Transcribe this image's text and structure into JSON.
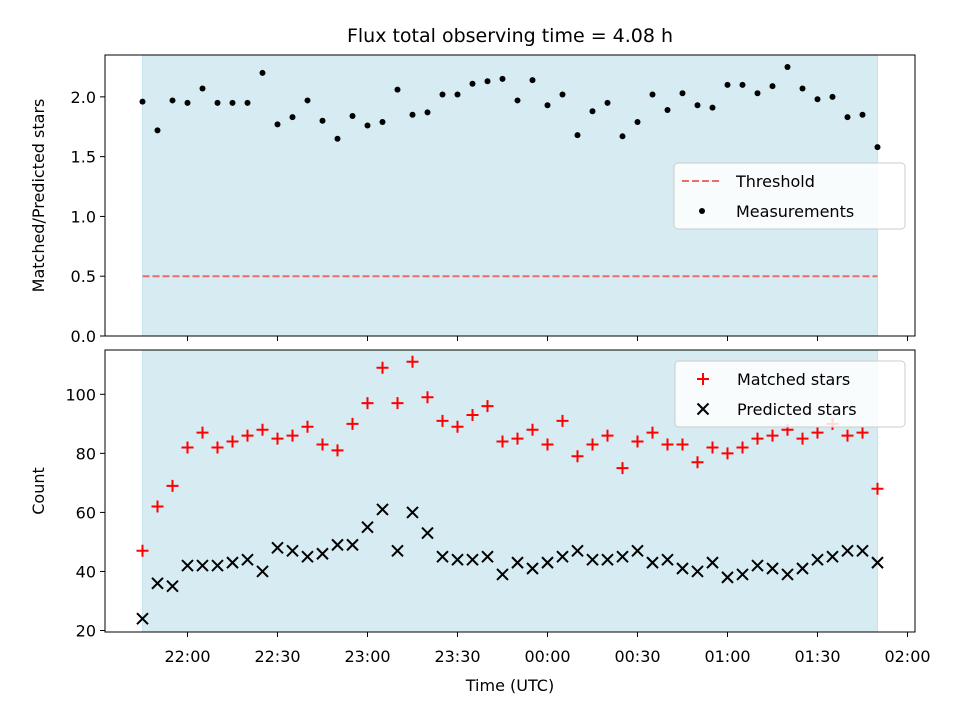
{
  "chart_data": {
    "title": "Flux total observing time = 4.08 h",
    "xlabel": "Time (UTC)",
    "x_tick_labels": [
      "22:00",
      "22:30",
      "23:00",
      "23:30",
      "00:00",
      "00:30",
      "01:00",
      "01:30",
      "02:00"
    ],
    "x_range": [
      "21:45",
      "01:50"
    ],
    "shade_color": "#add8e6",
    "panels": [
      {
        "type": "scatter",
        "ylabel": "Matched/Predicted stars",
        "ylim": [
          0,
          2.35
        ],
        "y_ticks": [
          "0.0",
          "0.5",
          "1.0",
          "1.5",
          "2.0"
        ],
        "legend_position": "right",
        "series": [
          {
            "name": "Threshold",
            "kind": "dashed-line",
            "color": "#ef6a6a",
            "y": 0.5
          },
          {
            "name": "Measurements",
            "kind": "dot",
            "color": "#000000",
            "x": [
              "21:45",
              "21:50",
              "21:55",
              "22:00",
              "22:05",
              "22:10",
              "22:15",
              "22:20",
              "22:25",
              "22:30",
              "22:35",
              "22:40",
              "22:45",
              "22:50",
              "22:55",
              "23:00",
              "23:05",
              "23:10",
              "23:15",
              "23:20",
              "23:25",
              "23:30",
              "23:35",
              "23:40",
              "23:45",
              "23:50",
              "23:55",
              "00:00",
              "00:05",
              "00:10",
              "00:15",
              "00:20",
              "00:25",
              "00:30",
              "00:35",
              "00:40",
              "00:45",
              "00:50",
              "00:55",
              "01:00",
              "01:05",
              "01:10",
              "01:15",
              "01:20",
              "01:25",
              "01:30",
              "01:35",
              "01:40",
              "01:45",
              "01:50"
            ],
            "values": [
              1.96,
              1.72,
              1.97,
              1.95,
              2.07,
              1.95,
              1.95,
              1.95,
              2.2,
              1.77,
              1.83,
              1.97,
              1.8,
              1.65,
              1.84,
              1.76,
              1.79,
              2.06,
              1.85,
              1.87,
              2.02,
              2.02,
              2.11,
              2.13,
              2.15,
              1.97,
              2.14,
              1.93,
              2.02,
              1.68,
              1.88,
              1.95,
              1.67,
              1.79,
              2.02,
              1.89,
              2.03,
              1.93,
              1.91,
              2.1,
              2.1,
              2.03,
              2.09,
              2.25,
              2.07,
              1.98,
              2.0,
              1.83,
              1.85,
              1.58
            ]
          }
        ]
      },
      {
        "type": "scatter",
        "ylabel": "Count",
        "ylim": [
          19.5,
          115
        ],
        "y_ticks": [
          "20",
          "40",
          "60",
          "80",
          "100"
        ],
        "legend_position": "top-right",
        "series": [
          {
            "name": "Matched stars",
            "kind": "plus",
            "color": "#ff0000",
            "x": [
              "21:45",
              "21:50",
              "21:55",
              "22:00",
              "22:05",
              "22:10",
              "22:15",
              "22:20",
              "22:25",
              "22:30",
              "22:35",
              "22:40",
              "22:45",
              "22:50",
              "22:55",
              "23:00",
              "23:05",
              "23:10",
              "23:15",
              "23:20",
              "23:25",
              "23:30",
              "23:35",
              "23:40",
              "23:45",
              "23:50",
              "23:55",
              "00:00",
              "00:05",
              "00:10",
              "00:15",
              "00:20",
              "00:25",
              "00:30",
              "00:35",
              "00:40",
              "00:45",
              "00:50",
              "00:55",
              "01:00",
              "01:05",
              "01:10",
              "01:15",
              "01:20",
              "01:25",
              "01:30",
              "01:35",
              "01:40",
              "01:45",
              "01:50"
            ],
            "values": [
              47,
              62,
              69,
              82,
              87,
              82,
              84,
              86,
              88,
              85,
              86,
              89,
              83,
              81,
              90,
              97,
              109,
              97,
              111,
              99,
              91,
              89,
              93,
              96,
              84,
              85,
              88,
              83,
              91,
              79,
              83,
              86,
              75,
              84,
              87,
              83,
              83,
              77,
              82,
              80,
              82,
              85,
              86,
              88,
              85,
              87,
              90,
              86,
              87,
              68
            ]
          },
          {
            "name": "Predicted stars",
            "kind": "cross",
            "color": "#000000",
            "x": [
              "21:45",
              "21:50",
              "21:55",
              "22:00",
              "22:05",
              "22:10",
              "22:15",
              "22:20",
              "22:25",
              "22:30",
              "22:35",
              "22:40",
              "22:45",
              "22:50",
              "22:55",
              "23:00",
              "23:05",
              "23:10",
              "23:15",
              "23:20",
              "23:25",
              "23:30",
              "23:35",
              "23:40",
              "23:45",
              "23:50",
              "23:55",
              "00:00",
              "00:05",
              "00:10",
              "00:15",
              "00:20",
              "00:25",
              "00:30",
              "00:35",
              "00:40",
              "00:45",
              "00:50",
              "00:55",
              "01:00",
              "01:05",
              "01:10",
              "01:15",
              "01:20",
              "01:25",
              "01:30",
              "01:35",
              "01:40",
              "01:45",
              "01:50"
            ],
            "values": [
              24,
              36,
              35,
              42,
              42,
              42,
              43,
              44,
              40,
              48,
              47,
              45,
              46,
              49,
              49,
              55,
              61,
              47,
              60,
              53,
              45,
              44,
              44,
              45,
              39,
              43,
              41,
              43,
              45,
              47,
              44,
              44,
              45,
              47,
              43,
              44,
              41,
              40,
              43,
              38,
              39,
              42,
              41,
              39,
              41,
              44,
              45,
              47,
              47,
              43
            ]
          }
        ]
      }
    ]
  }
}
